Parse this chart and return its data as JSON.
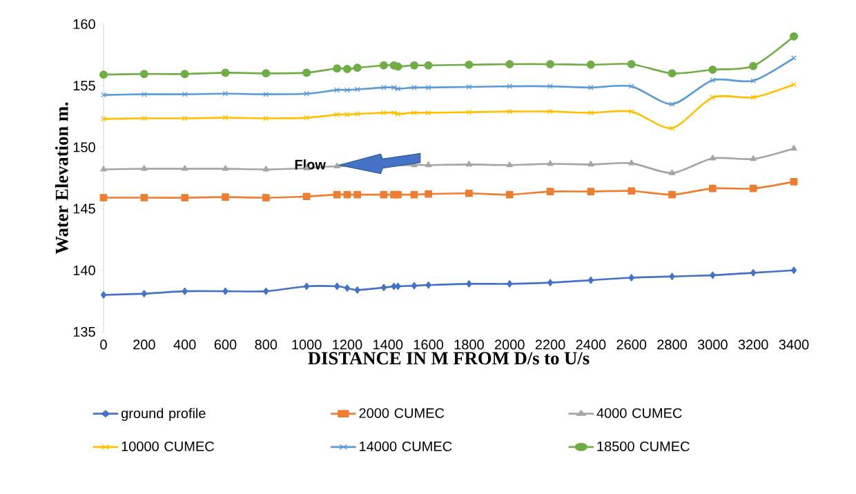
{
  "chart_data": {
    "type": "line",
    "xlabel": "DISTANCE IN M FROM D/s to U/s",
    "ylabel": "Water Elevation m.",
    "x": [
      0,
      200,
      400,
      600,
      800,
      1000,
      1150,
      1200,
      1250,
      1380,
      1430,
      1450,
      1530,
      1600,
      1800,
      2000,
      2200,
      2400,
      2600,
      2800,
      3000,
      3200,
      3400
    ],
    "series": [
      {
        "name": "ground profile",
        "color": "#4472c4",
        "marker": "diamond",
        "values": [
          138.0,
          138.1,
          138.3,
          138.3,
          138.3,
          138.7,
          138.7,
          138.55,
          138.4,
          138.6,
          138.7,
          138.7,
          138.75,
          138.8,
          138.9,
          138.9,
          139.0,
          139.2,
          139.4,
          139.5,
          139.6,
          139.8,
          140.0
        ]
      },
      {
        "name": "2000 CUMEC",
        "color": "#ed7d31",
        "marker": "square",
        "values": [
          145.9,
          145.9,
          145.9,
          145.95,
          145.9,
          146.0,
          146.15,
          146.15,
          146.15,
          146.15,
          146.15,
          146.15,
          146.15,
          146.2,
          146.25,
          146.15,
          146.4,
          146.4,
          146.45,
          146.15,
          146.65,
          146.65,
          147.2
        ]
      },
      {
        "name": "4000 CUMEC",
        "color": "#a5a5a5",
        "marker": "triangle",
        "values": [
          148.2,
          148.25,
          148.25,
          148.25,
          148.2,
          148.3,
          148.45,
          null,
          null,
          null,
          null,
          null,
          148.55,
          148.55,
          148.6,
          148.55,
          148.65,
          148.6,
          148.7,
          147.9,
          149.1,
          149.05,
          149.9
        ]
      },
      {
        "name": "10000 CUMEC",
        "color": "#ffc000",
        "marker": "cross",
        "values": [
          152.3,
          152.35,
          152.35,
          152.4,
          152.35,
          152.4,
          152.65,
          152.65,
          152.7,
          152.8,
          152.8,
          152.7,
          152.8,
          152.8,
          152.85,
          152.9,
          152.9,
          152.8,
          152.9,
          151.55,
          154.05,
          154.05,
          155.1
        ]
      },
      {
        "name": "14000 CUMEC",
        "color": "#5b9bd5",
        "marker": "cross",
        "values": [
          154.25,
          154.3,
          154.3,
          154.35,
          154.3,
          154.35,
          154.65,
          154.65,
          154.7,
          154.85,
          154.85,
          154.75,
          154.85,
          154.85,
          154.9,
          154.95,
          154.95,
          154.85,
          154.95,
          153.5,
          155.45,
          155.4,
          157.25
        ]
      },
      {
        "name": "18500 CUMEC",
        "color": "#70ad47",
        "marker": "circle",
        "values": [
          155.9,
          155.95,
          155.95,
          156.05,
          156.0,
          156.05,
          156.4,
          156.35,
          156.45,
          156.65,
          156.65,
          156.55,
          156.65,
          156.65,
          156.7,
          156.75,
          156.75,
          156.7,
          156.75,
          156.0,
          156.3,
          156.6,
          159.0
        ]
      }
    ],
    "xlim": [
      0,
      3400
    ],
    "xticks": [
      0,
      200,
      400,
      600,
      800,
      1000,
      1200,
      1400,
      1600,
      1800,
      2000,
      2200,
      2400,
      2600,
      2800,
      3000,
      3200,
      3400
    ],
    "ylim": [
      135,
      160
    ],
    "yticks": [
      135,
      140,
      145,
      150,
      155,
      160
    ],
    "grid": false,
    "legend": "bottom",
    "line_style": "solid",
    "annotations": [
      "Flow"
    ]
  }
}
